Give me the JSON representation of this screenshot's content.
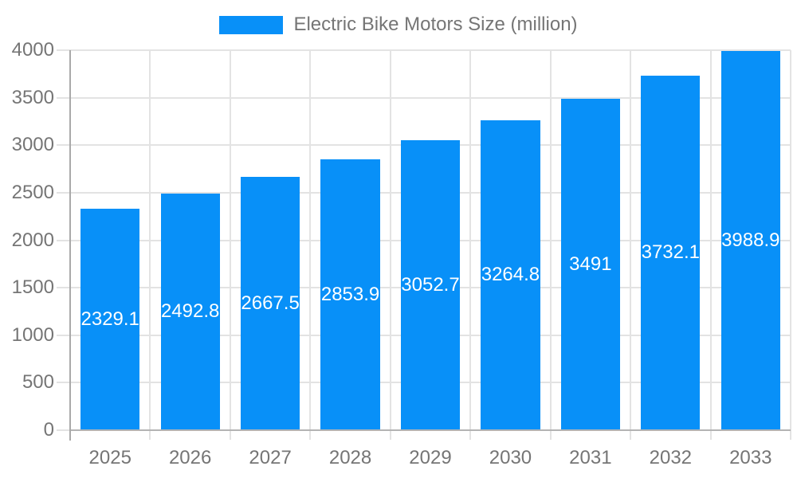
{
  "chart_data": {
    "type": "bar",
    "title": "Electric Bike Motors Size (million)",
    "legend": {
      "label": "Electric Bike Motors Size (million)",
      "position": "top"
    },
    "categories": [
      "2025",
      "2026",
      "2027",
      "2028",
      "2029",
      "2030",
      "2031",
      "2032",
      "2033"
    ],
    "series": [
      {
        "name": "Electric Bike Motors Size (million)",
        "values": [
          2329.1,
          2492.8,
          2667.5,
          2853.9,
          3052.7,
          3264.8,
          3491,
          3732.1,
          3988.9
        ]
      }
    ],
    "value_labels": [
      "2329.1",
      "2492.8",
      "2667.5",
      "2853.9",
      "3052.7",
      "3264.8",
      "3491",
      "3732.1",
      "3988.9"
    ],
    "xlabel": "",
    "ylabel": "",
    "ylim": [
      0,
      4000
    ],
    "ytick_step": 500,
    "ytick_labels": [
      "0",
      "500",
      "1000",
      "1500",
      "2000",
      "2500",
      "3000",
      "3500",
      "4000"
    ],
    "grid": true,
    "legend_position": "top",
    "colors": {
      "bar": "#0890F8",
      "axis": "#A9A9A9",
      "baseline": "#B3B3B3",
      "grid": "#E3E3E3",
      "tick_label": "#757575",
      "value_label": "#FFFFFF"
    }
  }
}
